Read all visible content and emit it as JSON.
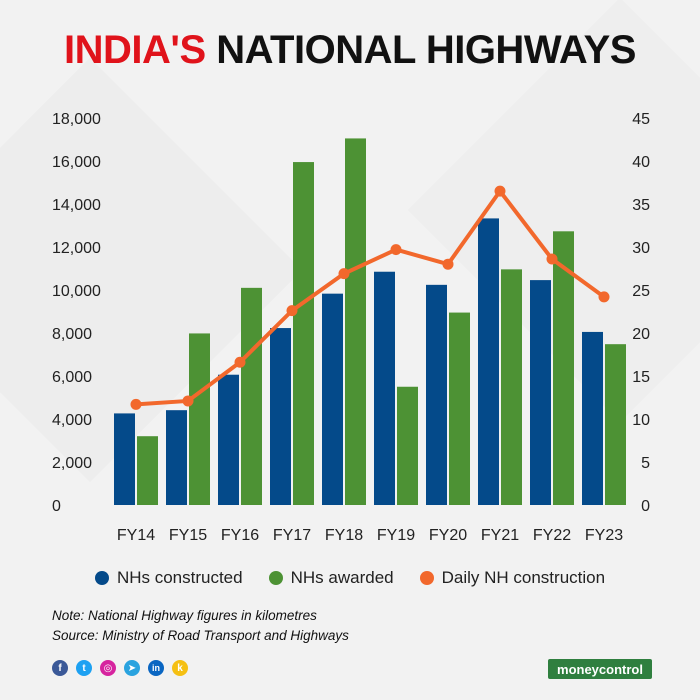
{
  "title": {
    "part1": "INDIA'S",
    "part2": "NATIONAL HIGHWAYS"
  },
  "colors": {
    "constructed": "#044a8a",
    "awarded": "#4d9234",
    "daily": "#f2682c",
    "title_red": "#e0131b"
  },
  "chart_data": {
    "type": "bar",
    "categories": [
      "FY14",
      "FY15",
      "FY16",
      "FY17",
      "FY18",
      "FY19",
      "FY20",
      "FY21",
      "FY22",
      "FY23"
    ],
    "series": [
      {
        "name": "NHs constructed",
        "axis": "left",
        "type": "bar",
        "values": [
          4260,
          4410,
          6060,
          8230,
          9830,
          10850,
          10240,
          13330,
          10460,
          8050
        ]
      },
      {
        "name": "NHs awarded",
        "axis": "left",
        "type": "bar",
        "values": [
          3200,
          7980,
          10100,
          15950,
          17050,
          5500,
          8950,
          10960,
          12730,
          7480
        ]
      },
      {
        "name": "Daily NH construction",
        "axis": "right",
        "type": "line",
        "values": [
          11.7,
          12.1,
          16.6,
          22.6,
          26.9,
          29.7,
          28.0,
          36.5,
          28.6,
          24.2
        ]
      }
    ],
    "left_axis": {
      "ylim": [
        0,
        18000
      ],
      "ticks": [
        "0",
        "2,000",
        "4,000",
        "6,000",
        "8,000",
        "10,000",
        "12,000",
        "14,000",
        "16,000",
        "18,000"
      ]
    },
    "right_axis": {
      "ylim": [
        0,
        45
      ],
      "ticks": [
        "0",
        "5",
        "10",
        "15",
        "20",
        "25",
        "30",
        "35",
        "40",
        "45"
      ]
    }
  },
  "legend": [
    {
      "label": "NHs constructed",
      "color": "#044a8a"
    },
    {
      "label": "NHs awarded",
      "color": "#4d9234"
    },
    {
      "label": "Daily NH construction",
      "color": "#f2682c"
    }
  ],
  "notes": {
    "note": "Note: National Highway figures in kilometres",
    "source": "Source: Ministry of Road Transport and Highways"
  },
  "social": [
    {
      "name": "facebook-icon",
      "glyph": "f",
      "color": "#3b5998"
    },
    {
      "name": "twitter-icon",
      "glyph": "t",
      "color": "#1da1f2"
    },
    {
      "name": "instagram-icon",
      "glyph": "◎",
      "color": "#d6249f"
    },
    {
      "name": "telegram-icon",
      "glyph": "➤",
      "color": "#2aa3df"
    },
    {
      "name": "linkedin-icon",
      "glyph": "in",
      "color": "#0a66c2"
    },
    {
      "name": "koo-icon",
      "glyph": "k",
      "color": "#f5c013"
    }
  ],
  "brand": "moneycontrol"
}
